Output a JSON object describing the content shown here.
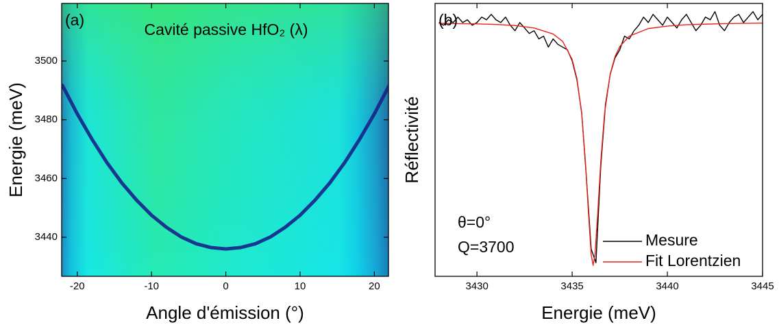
{
  "chart_data": [
    {
      "type": "heatmap",
      "label": "(a)",
      "title": "Cavité passive HfO₂ (λ)",
      "xlabel": "Angle d'émission (°)",
      "ylabel": "Energie (meV)",
      "xlim": [
        -22.1,
        21.9
      ],
      "ylim": [
        3426.7,
        3519.6
      ],
      "xticks": [
        -20,
        -10,
        0,
        10,
        20
      ],
      "yticks": [
        3440,
        3460,
        3480,
        3500
      ],
      "series": [
        {
          "color": "#16238a",
          "x": [
            -22,
            -20,
            -18,
            -16,
            -14,
            -12,
            -10,
            -8,
            -6,
            -4,
            -2,
            0,
            2,
            4,
            6,
            8,
            10,
            12,
            14,
            16,
            18,
            20,
            22
          ],
          "values": [
            3491.7,
            3482,
            3473.3,
            3465.4,
            3458.5,
            3452.6,
            3447.5,
            3443.4,
            3440.1,
            3437.8,
            3436.5,
            3436,
            3436.5,
            3437.8,
            3440.1,
            3443.4,
            3447.5,
            3452.6,
            3458.5,
            3465.4,
            3473.3,
            3482,
            3491.7
          ]
        }
      ]
    },
    {
      "type": "line",
      "label": "(b)",
      "xlabel": "Energie (meV)",
      "ylabel": "Réflectivité",
      "xlim": [
        3427.8,
        3445
      ],
      "ylim": [
        0,
        1
      ],
      "xticks": [
        3430,
        3435,
        3440,
        3445
      ],
      "annotations": [
        "θ=0°",
        "Q=3700"
      ],
      "legend": "lower right",
      "series": [
        {
          "name": "Mesure",
          "color": "#000000",
          "x": [
            3428,
            3428.25,
            3428.5,
            3428.75,
            3429,
            3429.25,
            3429.5,
            3429.75,
            3430,
            3430.25,
            3430.5,
            3430.75,
            3431,
            3431.25,
            3431.5,
            3431.75,
            3432,
            3432.25,
            3432.5,
            3432.75,
            3433,
            3433.25,
            3433.5,
            3433.75,
            3434,
            3434.25,
            3434.5,
            3434.75,
            3435,
            3435.25,
            3435.5,
            3435.75,
            3436,
            3436.25,
            3436.5,
            3436.75,
            3437,
            3437.25,
            3437.5,
            3437.75,
            3438,
            3438.25,
            3438.5,
            3438.75,
            3439,
            3439.25,
            3439.5,
            3439.75,
            3440,
            3440.25,
            3440.5,
            3440.75,
            3441,
            3441.25,
            3441.5,
            3441.75,
            3442,
            3442.25,
            3442.5,
            3442.75,
            3443,
            3443.25,
            3443.5,
            3443.75,
            3444,
            3444.25,
            3444.5,
            3444.75,
            3445
          ],
          "values": [
            0.93,
            0.92,
            0.94,
            0.93,
            0.95,
            0.93,
            0.94,
            0.92,
            0.93,
            0.95,
            0.94,
            0.96,
            0.94,
            0.93,
            0.95,
            0.92,
            0.9,
            0.93,
            0.91,
            0.89,
            0.9,
            0.87,
            0.88,
            0.84,
            0.87,
            0.85,
            0.84,
            0.83,
            0.79,
            0.72,
            0.6,
            0.36,
            0.1,
            0.05,
            0.4,
            0.63,
            0.74,
            0.8,
            0.83,
            0.88,
            0.87,
            0.9,
            0.92,
            0.95,
            0.93,
            0.96,
            0.94,
            0.92,
            0.95,
            0.93,
            0.91,
            0.94,
            0.96,
            0.93,
            0.9,
            0.92,
            0.95,
            0.94,
            0.97,
            0.92,
            0.9,
            0.93,
            0.95,
            0.96,
            0.93,
            0.95,
            0.97,
            0.94,
            0.96
          ]
        },
        {
          "name": "Fit Lorentzien",
          "color": "#e8201c",
          "x": [
            3428,
            3429,
            3430,
            3431,
            3432,
            3433,
            3434,
            3434.5,
            3435,
            3435.25,
            3435.5,
            3435.7,
            3435.85,
            3436,
            3436.1,
            3436.2,
            3436.35,
            3436.5,
            3436.7,
            3437,
            3437.25,
            3437.5,
            3438,
            3439,
            3440,
            3441,
            3442,
            3443,
            3444,
            3445
          ],
          "values": [
            0.927,
            0.926,
            0.925,
            0.923,
            0.919,
            0.91,
            0.888,
            0.861,
            0.795,
            0.725,
            0.596,
            0.418,
            0.239,
            0.079,
            0.04,
            0.079,
            0.239,
            0.418,
            0.596,
            0.742,
            0.805,
            0.842,
            0.88,
            0.908,
            0.917,
            0.922,
            0.924,
            0.926,
            0.927,
            0.928
          ]
        }
      ]
    }
  ]
}
